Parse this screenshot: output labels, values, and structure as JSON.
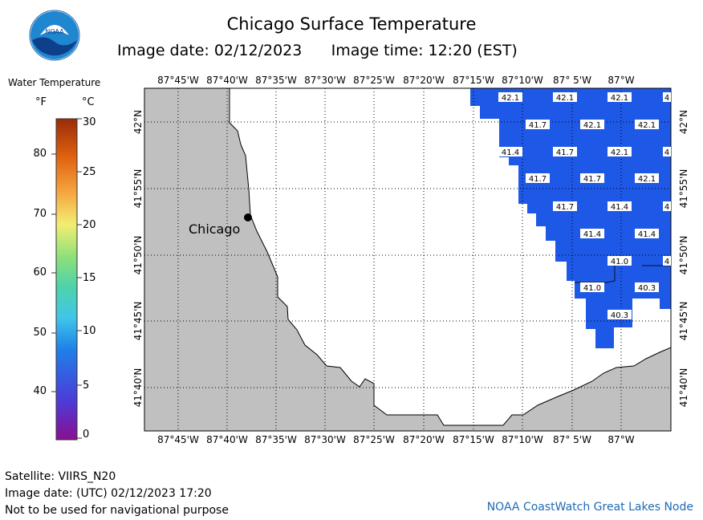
{
  "title": "Chicago Surface Temperature",
  "image_date_label": "Image date: 02/12/2023",
  "image_time_label": "Image time: 12:20 (EST)",
  "legend": {
    "title": "Water Temperature",
    "unit_f": "°F",
    "unit_c": "°C",
    "f_ticks": [
      "80",
      "70",
      "60",
      "50",
      "40"
    ],
    "c_ticks": [
      "30",
      "25",
      "20",
      "15",
      "10",
      "5",
      "0"
    ]
  },
  "map": {
    "lon_labels": [
      "87°45'W",
      "87°40'W",
      "87°35'W",
      "87°30'W",
      "87°25'W",
      "87°20'W",
      "87°15'W",
      "87°10'W",
      "87° 5'W",
      "87°W"
    ],
    "lat_labels": [
      "42°N",
      "41°55'N",
      "41°50'N",
      "41°45'N",
      "41°40'N"
    ],
    "city_label": "Chicago",
    "land_color": "#c0c0c0",
    "water_color": "#ffffff",
    "temp_cell_color": "#1e58e6",
    "temp_values": [
      [
        "42.1",
        "42.1",
        "42.1",
        "4"
      ],
      [
        "41.7",
        "42.1",
        "42.1"
      ],
      [
        "41.4",
        "41.7",
        "42.1",
        "4"
      ],
      [
        "41.7",
        "41.7",
        "42.1"
      ],
      [
        "41.7",
        "41.4",
        "4"
      ],
      [
        "41.4",
        "41.4"
      ],
      [
        "41.0",
        "4"
      ],
      [
        "41.0",
        "40.3"
      ],
      [
        "40.3"
      ]
    ]
  },
  "footer": {
    "satellite": "Satellite: VIIRS_N20",
    "utc_date": "Image date: (UTC) 02/12/2023  17:20",
    "disclaimer": "Not to be used for navigational purpose",
    "credit": "NOAA CoastWatch Great Lakes Node"
  },
  "logo": {
    "text": "NOAA"
  }
}
